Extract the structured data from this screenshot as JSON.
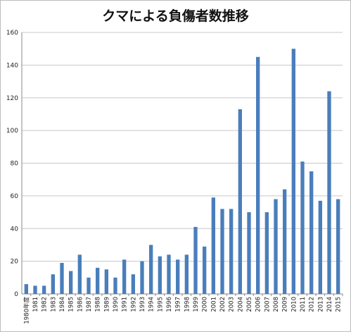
{
  "chart_data": {
    "type": "bar",
    "title": "クマによる負傷者数推移",
    "xlabel": "",
    "ylabel": "",
    "ylim": [
      0,
      160
    ],
    "yticks": [
      0,
      20,
      40,
      60,
      80,
      100,
      120,
      140,
      160
    ],
    "grid": true,
    "legend": "none",
    "bar_color": "#4a7ebb",
    "categories": [
      "1980年度",
      "1981",
      "1982",
      "1983",
      "1984",
      "1985",
      "1986",
      "1987",
      "1988",
      "1989",
      "1990",
      "1991",
      "1992",
      "1993",
      "1994",
      "1995",
      "1996",
      "1997",
      "1998",
      "1999",
      "2000",
      "2001",
      "2002",
      "2003",
      "2004",
      "2005",
      "2006",
      "2007",
      "2008",
      "2009",
      "2010",
      "2011",
      "2012",
      "2013",
      "2014",
      "2015"
    ],
    "values": [
      6,
      5,
      5,
      12,
      19,
      14,
      24,
      10,
      16,
      15,
      10,
      21,
      12,
      20,
      30,
      23,
      24,
      21,
      24,
      41,
      29,
      59,
      52,
      52,
      113,
      50,
      145,
      50,
      58,
      64,
      150,
      81,
      75,
      57,
      124,
      58
    ]
  }
}
